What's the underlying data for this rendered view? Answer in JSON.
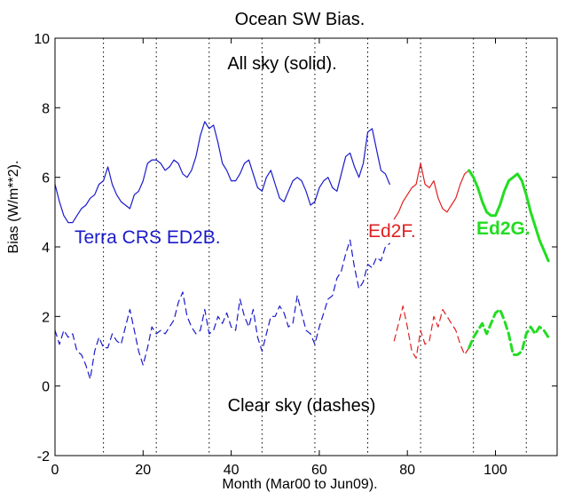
{
  "chart_data": {
    "type": "line",
    "title": "Ocean SW Bias.",
    "xlabel": "Month (Mar00 to Jun09).",
    "ylabel": "Bias (W/m**2).",
    "xlim": [
      0,
      114
    ],
    "ylim": [
      -2,
      10
    ],
    "xticks": [
      0,
      20,
      40,
      60,
      80,
      100
    ],
    "yticks": [
      -2,
      0,
      2,
      4,
      6,
      8,
      10
    ],
    "vlines": [
      11,
      23,
      35,
      47,
      59,
      71,
      83,
      95,
      107
    ],
    "grid": false,
    "annotations": [
      {
        "id": "all-sky",
        "text": "All sky (solid)."
      },
      {
        "id": "clear-sky",
        "text": "Clear sky (dashes)"
      },
      {
        "id": "terra",
        "text": "Terra CRS ED2B."
      },
      {
        "id": "ed2f",
        "text": "Ed2F."
      },
      {
        "id": "ed2g",
        "text": "Ed2G."
      }
    ],
    "colors": {
      "terra": "#1a1acc",
      "ed2f": "#e02020",
      "ed2g": "#22dd22"
    },
    "series": [
      {
        "group": "terra",
        "style": "solid",
        "x": [
          0,
          1,
          2,
          3,
          4,
          5,
          6,
          7,
          8,
          9,
          10,
          11,
          12,
          13,
          14,
          15,
          16,
          17,
          18,
          19,
          20,
          21,
          22,
          23,
          24,
          25,
          26,
          27,
          28,
          29,
          30,
          31,
          32,
          33,
          34,
          35,
          36,
          37,
          38,
          39,
          40,
          41,
          42,
          43,
          44,
          45,
          46,
          47,
          48,
          49,
          50,
          51,
          52,
          53,
          54,
          55,
          56,
          57,
          58,
          59,
          60,
          61,
          62,
          63,
          64,
          65,
          66,
          67,
          68,
          69,
          70,
          71,
          72,
          73,
          74,
          75,
          76
        ],
        "y": [
          5.8,
          5.3,
          4.9,
          4.7,
          4.7,
          4.9,
          5.1,
          5.2,
          5.4,
          5.5,
          5.8,
          5.9,
          6.3,
          5.8,
          5.5,
          5.3,
          5.2,
          5.1,
          5.5,
          5.6,
          5.9,
          6.4,
          6.5,
          6.5,
          6.4,
          6.2,
          6.3,
          6.5,
          6.4,
          6.1,
          6.0,
          6.2,
          6.6,
          7.2,
          7.6,
          7.4,
          7.5,
          7.0,
          6.4,
          6.2,
          5.9,
          5.9,
          6.1,
          6.4,
          6.5,
          6.1,
          5.7,
          5.6,
          6.0,
          6.2,
          5.8,
          5.4,
          5.3,
          5.6,
          5.9,
          6.0,
          5.9,
          5.6,
          5.2,
          5.3,
          5.7,
          5.9,
          6.0,
          5.7,
          5.6,
          6.1,
          6.6,
          6.7,
          6.3,
          6.0,
          6.4,
          7.3,
          7.4,
          6.8,
          6.2,
          6.1,
          5.8
        ]
      },
      {
        "group": "ed2f",
        "style": "solid",
        "x": [
          77,
          78,
          79,
          80,
          81,
          82,
          83,
          84,
          85,
          86,
          87,
          88,
          89,
          90,
          91,
          92,
          93,
          94
        ],
        "y": [
          4.8,
          5.0,
          5.3,
          5.5,
          5.7,
          5.8,
          6.4,
          5.8,
          5.7,
          5.9,
          5.4,
          5.1,
          5.0,
          5.2,
          5.4,
          5.8,
          6.1,
          6.2
        ]
      },
      {
        "group": "ed2g",
        "style": "solid",
        "x": [
          94,
          95,
          96,
          97,
          98,
          99,
          100,
          101,
          102,
          103,
          104,
          105,
          106,
          107,
          108,
          109,
          110,
          111,
          112
        ],
        "y": [
          6.2,
          6.0,
          5.7,
          5.3,
          5.0,
          4.9,
          4.9,
          5.2,
          5.6,
          5.9,
          6.0,
          6.1,
          5.9,
          5.5,
          5.0,
          4.6,
          4.2,
          3.9,
          3.6
        ]
      },
      {
        "group": "terra",
        "style": "dashed",
        "x": [
          0,
          1,
          2,
          3,
          4,
          5,
          6,
          7,
          8,
          9,
          10,
          11,
          12,
          13,
          14,
          15,
          16,
          17,
          18,
          19,
          20,
          21,
          22,
          23,
          24,
          25,
          26,
          27,
          28,
          29,
          30,
          31,
          32,
          33,
          34,
          35,
          36,
          37,
          38,
          39,
          40,
          41,
          42,
          43,
          44,
          45,
          46,
          47,
          48,
          49,
          50,
          51,
          52,
          53,
          54,
          55,
          56,
          57,
          58,
          59,
          60,
          61,
          62,
          63,
          64,
          65,
          66,
          67,
          68,
          69,
          70,
          71,
          72,
          73,
          74,
          75,
          76
        ],
        "y": [
          1.6,
          1.2,
          1.6,
          1.4,
          1.5,
          1.0,
          0.9,
          0.6,
          0.2,
          1.0,
          1.4,
          1.1,
          1.1,
          1.5,
          1.3,
          1.2,
          1.7,
          2.2,
          1.6,
          1.0,
          0.6,
          1.1,
          1.7,
          1.5,
          1.6,
          1.5,
          1.7,
          1.9,
          2.4,
          2.7,
          2.0,
          1.7,
          1.5,
          1.6,
          2.2,
          1.5,
          1.6,
          2.0,
          1.8,
          2.1,
          1.7,
          1.6,
          2.5,
          2.0,
          1.7,
          2.2,
          1.4,
          1.0,
          1.5,
          2.0,
          2.0,
          2.3,
          2.1,
          1.7,
          1.8,
          2.6,
          2.1,
          1.6,
          1.5,
          1.2,
          1.7,
          2.1,
          2.5,
          2.6,
          3.1,
          3.3,
          3.8,
          4.2,
          3.4,
          2.8,
          3.0,
          3.5,
          3.4,
          3.7,
          3.6,
          4.0,
          4.1
        ]
      },
      {
        "group": "ed2f",
        "style": "dashed",
        "x": [
          77,
          78,
          79,
          80,
          81,
          82,
          83,
          84,
          85,
          86,
          87,
          88,
          89,
          90,
          91,
          92,
          93,
          94
        ],
        "y": [
          1.3,
          1.8,
          2.3,
          1.7,
          1.0,
          0.8,
          1.6,
          1.2,
          1.3,
          2.0,
          1.7,
          2.2,
          2.0,
          1.8,
          1.6,
          1.2,
          0.9,
          1.1
        ]
      },
      {
        "group": "ed2g",
        "style": "dashed",
        "x": [
          94,
          95,
          96,
          97,
          98,
          99,
          100,
          101,
          102,
          103,
          104,
          105,
          106,
          107,
          108,
          109,
          110,
          111,
          112
        ],
        "y": [
          1.1,
          1.4,
          1.6,
          1.8,
          1.5,
          1.8,
          2.1,
          2.2,
          1.9,
          1.5,
          0.9,
          0.9,
          1.0,
          1.5,
          1.7,
          1.5,
          1.7,
          1.6,
          1.4
        ]
      }
    ]
  }
}
